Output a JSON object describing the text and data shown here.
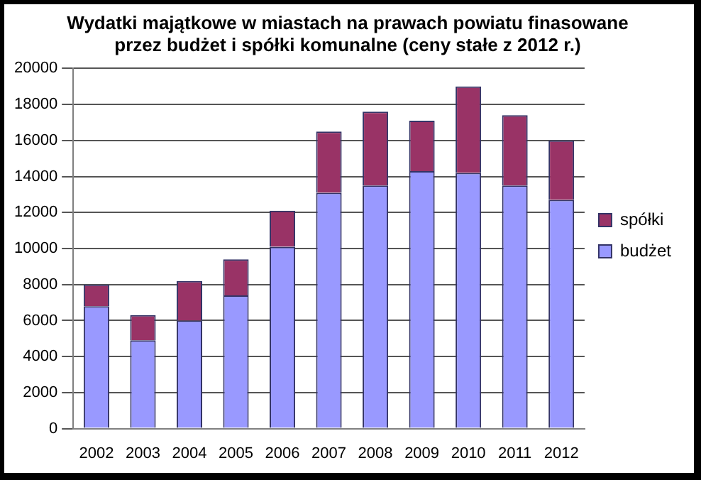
{
  "chart_data": {
    "type": "bar",
    "title": "Wydatki majątkowe w miastach na prawach powiatu finasowane\nprzez budżet i spółki komunalne (ceny stałe z 2012 r.)",
    "categories": [
      "2002",
      "2003",
      "2004",
      "2005",
      "2006",
      "2007",
      "2008",
      "2009",
      "2010",
      "2011",
      "2012"
    ],
    "series": [
      {
        "name": "budżet",
        "color": "#9999ff",
        "values": [
          6800,
          4900,
          6000,
          7400,
          10100,
          13100,
          13500,
          14300,
          14200,
          13500,
          12700
        ]
      },
      {
        "name": "spółki",
        "color": "#993366",
        "values": [
          1200,
          1400,
          2200,
          2000,
          2000,
          3400,
          4100,
          2800,
          4800,
          3900,
          3300
        ]
      }
    ],
    "stacked": true,
    "ylim": [
      0,
      20000
    ],
    "yticks": [
      0,
      2000,
      4000,
      6000,
      8000,
      10000,
      12000,
      14000,
      16000,
      18000,
      20000
    ],
    "grid": "y",
    "legend": "right"
  }
}
